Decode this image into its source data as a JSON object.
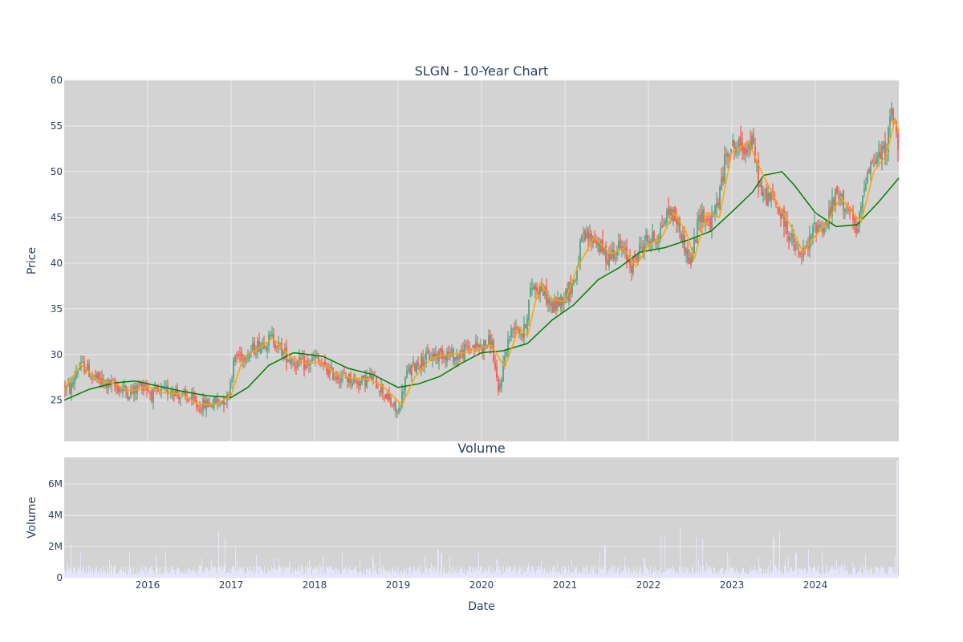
{
  "colors": {
    "plot_bg": "#d3d3d3",
    "grid": "#ebebf2",
    "increasing": "#3d9970",
    "decreasing": "#ff4136",
    "ma_short": "#ffa500",
    "ma_long": "#008000",
    "volume_bar": "#e6e6fa",
    "text": "#2a3f5f"
  },
  "chart_data": [
    {
      "type": "candlestick",
      "title": "SLGN - 10-Year Chart",
      "ylabel": "Price",
      "ylim": [
        20.5,
        60
      ],
      "yticks": [
        25,
        30,
        35,
        40,
        45,
        50,
        55,
        60
      ],
      "xlim": [
        2015.0,
        2025.0
      ],
      "xticks": [
        2016,
        2017,
        2018,
        2019,
        2020,
        2021,
        2022,
        2023,
        2024
      ],
      "price_path": [
        [
          2015.0,
          26.5
        ],
        [
          2015.08,
          26.2
        ],
        [
          2015.15,
          28.4
        ],
        [
          2015.25,
          28.8
        ],
        [
          2015.33,
          27.6
        ],
        [
          2015.45,
          27.0
        ],
        [
          2015.58,
          26.6
        ],
        [
          2015.7,
          26.2
        ],
        [
          2015.8,
          25.8
        ],
        [
          2015.95,
          26.9
        ],
        [
          2016.05,
          25.6
        ],
        [
          2016.2,
          25.9
        ],
        [
          2016.3,
          26.3
        ],
        [
          2016.4,
          25.4
        ],
        [
          2016.5,
          25.2
        ],
        [
          2016.6,
          24.3
        ],
        [
          2016.72,
          24.6
        ],
        [
          2016.85,
          24.9
        ],
        [
          2016.95,
          25.2
        ],
        [
          2017.05,
          29.8
        ],
        [
          2017.2,
          30.1
        ],
        [
          2017.35,
          31.2
        ],
        [
          2017.5,
          31.8
        ],
        [
          2017.62,
          30.2
        ],
        [
          2017.75,
          29.2
        ],
        [
          2017.9,
          28.8
        ],
        [
          2018.0,
          29.6
        ],
        [
          2018.1,
          28.6
        ],
        [
          2018.25,
          27.7
        ],
        [
          2018.4,
          27.4
        ],
        [
          2018.55,
          27.0
        ],
        [
          2018.68,
          27.5
        ],
        [
          2018.8,
          26.3
        ],
        [
          2018.9,
          24.8
        ],
        [
          2019.0,
          23.5
        ],
        [
          2019.1,
          27.8
        ],
        [
          2019.25,
          29.3
        ],
        [
          2019.4,
          29.8
        ],
        [
          2019.55,
          30.2
        ],
        [
          2019.7,
          29.7
        ],
        [
          2019.85,
          30.8
        ],
        [
          2020.0,
          30.9
        ],
        [
          2020.12,
          31.5
        ],
        [
          2020.2,
          25.5
        ],
        [
          2020.3,
          31.0
        ],
        [
          2020.4,
          33.5
        ],
        [
          2020.5,
          32.0
        ],
        [
          2020.6,
          37.5
        ],
        [
          2020.72,
          37.2
        ],
        [
          2020.85,
          35.0
        ],
        [
          2021.0,
          36.5
        ],
        [
          2021.12,
          38.2
        ],
        [
          2021.2,
          42.5
        ],
        [
          2021.35,
          42.8
        ],
        [
          2021.5,
          40.6
        ],
        [
          2021.65,
          41.8
        ],
        [
          2021.8,
          39.8
        ],
        [
          2021.95,
          42.4
        ],
        [
          2022.1,
          42.8
        ],
        [
          2022.25,
          45.8
        ],
        [
          2022.35,
          44.5
        ],
        [
          2022.5,
          39.8
        ],
        [
          2022.62,
          45.5
        ],
        [
          2022.75,
          44.2
        ],
        [
          2022.85,
          47.5
        ],
        [
          2022.95,
          52.8
        ],
        [
          2023.1,
          52.7
        ],
        [
          2023.25,
          53.0
        ],
        [
          2023.35,
          47.5
        ],
        [
          2023.5,
          47.0
        ],
        [
          2023.65,
          44.0
        ],
        [
          2023.8,
          40.6
        ],
        [
          2023.9,
          41.5
        ],
        [
          2024.0,
          44.2
        ],
        [
          2024.12,
          44.0
        ],
        [
          2024.25,
          47.5
        ],
        [
          2024.38,
          46.2
        ],
        [
          2024.5,
          43.0
        ],
        [
          2024.62,
          50.5
        ],
        [
          2024.75,
          51.5
        ],
        [
          2024.85,
          52.5
        ],
        [
          2024.92,
          57.0
        ],
        [
          2025.0,
          52.0
        ]
      ],
      "ma_short": [
        [
          2015.0,
          26.2
        ],
        [
          2015.2,
          28.9
        ],
        [
          2015.4,
          27.2
        ],
        [
          2015.6,
          26.8
        ],
        [
          2015.8,
          26.0
        ],
        [
          2016.0,
          26.5
        ],
        [
          2016.2,
          25.8
        ],
        [
          2016.4,
          25.7
        ],
        [
          2016.6,
          24.6
        ],
        [
          2016.8,
          24.5
        ],
        [
          2017.0,
          25.5
        ],
        [
          2017.15,
          29.8
        ],
        [
          2017.3,
          30.5
        ],
        [
          2017.5,
          31.8
        ],
        [
          2017.7,
          29.8
        ],
        [
          2017.9,
          29.0
        ],
        [
          2018.05,
          29.2
        ],
        [
          2018.25,
          28.0
        ],
        [
          2018.45,
          27.4
        ],
        [
          2018.65,
          27.3
        ],
        [
          2018.82,
          26.5
        ],
        [
          2019.05,
          24.5
        ],
        [
          2019.2,
          27.5
        ],
        [
          2019.4,
          29.6
        ],
        [
          2019.6,
          30.0
        ],
        [
          2019.8,
          30.2
        ],
        [
          2020.0,
          30.8
        ],
        [
          2020.12,
          31.0
        ],
        [
          2020.28,
          28.6
        ],
        [
          2020.45,
          33.0
        ],
        [
          2020.55,
          32.0
        ],
        [
          2020.7,
          37.8
        ],
        [
          2020.85,
          36.0
        ],
        [
          2021.0,
          35.8
        ],
        [
          2021.15,
          39.5
        ],
        [
          2021.35,
          42.8
        ],
        [
          2021.55,
          41.0
        ],
        [
          2021.7,
          41.6
        ],
        [
          2021.85,
          39.6
        ],
        [
          2022.0,
          42.0
        ],
        [
          2022.15,
          42.6
        ],
        [
          2022.3,
          45.5
        ],
        [
          2022.45,
          43.5
        ],
        [
          2022.55,
          40.5
        ],
        [
          2022.7,
          45.5
        ],
        [
          2022.85,
          45.0
        ],
        [
          2023.0,
          52.2
        ],
        [
          2023.2,
          53.2
        ],
        [
          2023.38,
          49.5
        ],
        [
          2023.55,
          46.5
        ],
        [
          2023.7,
          44.2
        ],
        [
          2023.85,
          41.2
        ],
        [
          2024.0,
          43.0
        ],
        [
          2024.15,
          44.5
        ],
        [
          2024.3,
          47.2
        ],
        [
          2024.45,
          45.5
        ],
        [
          2024.55,
          44.5
        ],
        [
          2024.7,
          50.0
        ],
        [
          2024.85,
          51.8
        ],
        [
          2024.95,
          55.5
        ],
        [
          2025.0,
          54.5
        ]
      ],
      "ma_long": [
        [
          2015.0,
          25.0
        ],
        [
          2015.3,
          26.2
        ],
        [
          2015.6,
          26.9
        ],
        [
          2015.85,
          27.1
        ],
        [
          2016.1,
          26.6
        ],
        [
          2016.4,
          26.0
        ],
        [
          2016.7,
          25.5
        ],
        [
          2017.0,
          25.3
        ],
        [
          2017.2,
          26.4
        ],
        [
          2017.45,
          28.8
        ],
        [
          2017.75,
          30.2
        ],
        [
          2018.1,
          29.8
        ],
        [
          2018.4,
          28.5
        ],
        [
          2018.7,
          27.8
        ],
        [
          2019.0,
          26.4
        ],
        [
          2019.25,
          26.8
        ],
        [
          2019.5,
          27.6
        ],
        [
          2019.75,
          29.0
        ],
        [
          2020.0,
          30.2
        ],
        [
          2020.25,
          30.4
        ],
        [
          2020.55,
          31.2
        ],
        [
          2020.85,
          33.8
        ],
        [
          2021.1,
          35.4
        ],
        [
          2021.4,
          38.2
        ],
        [
          2021.65,
          39.5
        ],
        [
          2021.9,
          41.2
        ],
        [
          2022.2,
          41.7
        ],
        [
          2022.5,
          42.6
        ],
        [
          2022.75,
          43.5
        ],
        [
          2023.0,
          45.6
        ],
        [
          2023.25,
          47.8
        ],
        [
          2023.38,
          49.6
        ],
        [
          2023.6,
          50.0
        ],
        [
          2023.75,
          48.5
        ],
        [
          2024.0,
          45.5
        ],
        [
          2024.25,
          44.0
        ],
        [
          2024.5,
          44.2
        ],
        [
          2024.75,
          46.6
        ],
        [
          2025.0,
          49.3
        ]
      ]
    },
    {
      "type": "bar",
      "title": "Volume",
      "ylabel": "Volume",
      "xlabel": "Date",
      "ylim": [
        0,
        7.7
      ],
      "yticks": [
        0,
        2,
        4,
        6
      ],
      "ytick_labels": [
        "0",
        "2M",
        "4M",
        "6M"
      ],
      "xlim": [
        2015.0,
        2025.0
      ],
      "xticks": [
        2016,
        2017,
        2018,
        2019,
        2020,
        2021,
        2022,
        2023,
        2024
      ],
      "units": "M",
      "baseline_mean": 0.55,
      "spikes": [
        [
          2015.08,
          2.2
        ],
        [
          2015.2,
          1.6
        ],
        [
          2015.78,
          1.6
        ],
        [
          2016.1,
          1.5
        ],
        [
          2016.22,
          1.7
        ],
        [
          2016.85,
          3.0
        ],
        [
          2016.93,
          2.5
        ],
        [
          2017.05,
          2.0
        ],
        [
          2017.3,
          1.5
        ],
        [
          2018.1,
          1.4
        ],
        [
          2018.33,
          1.6
        ],
        [
          2018.7,
          1.5
        ],
        [
          2018.78,
          1.6
        ],
        [
          2019.32,
          1.4
        ],
        [
          2019.48,
          1.8
        ],
        [
          2019.52,
          1.6
        ],
        [
          2019.97,
          1.6
        ],
        [
          2020.2,
          1.2
        ],
        [
          2020.72,
          1.1
        ],
        [
          2021.08,
          1.1
        ],
        [
          2021.48,
          2.1
        ],
        [
          2021.72,
          1.3
        ],
        [
          2021.95,
          1.3
        ],
        [
          2022.15,
          2.6
        ],
        [
          2022.2,
          2.6
        ],
        [
          2022.38,
          3.2
        ],
        [
          2022.57,
          2.6
        ],
        [
          2022.65,
          2.5
        ],
        [
          2022.95,
          1.6
        ],
        [
          2023.32,
          1.3
        ],
        [
          2023.5,
          2.6
        ],
        [
          2023.57,
          3.0
        ],
        [
          2023.68,
          1.3
        ],
        [
          2023.77,
          1.6
        ],
        [
          2023.92,
          1.8
        ],
        [
          2024.08,
          1.7
        ],
        [
          2024.6,
          1.5
        ],
        [
          2024.98,
          7.5
        ]
      ]
    }
  ]
}
